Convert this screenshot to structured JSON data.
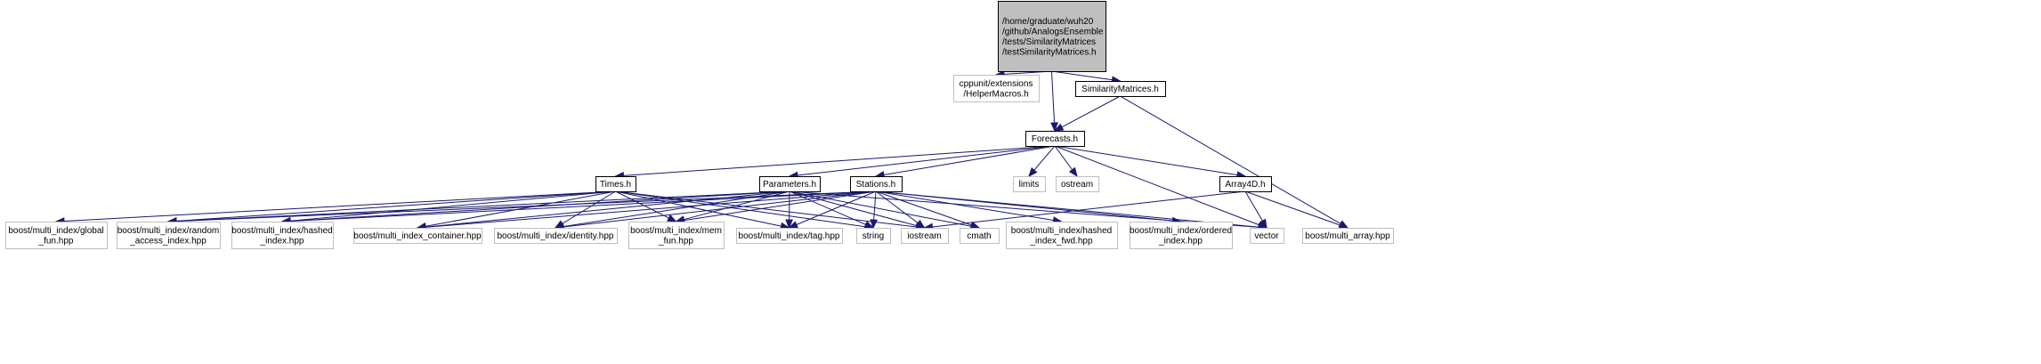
{
  "graph": {
    "nodes": [
      {
        "id": "root",
        "lines": [
          "/home/graduate/wuh20",
          "/github/AnalogsEnsemble",
          "/tests/SimilarityMatrices",
          "/testSimilarityMatrices.h"
        ],
        "kind": "root"
      },
      {
        "id": "helpermacros",
        "lines": [
          "cppunit/extensions",
          "/HelperMacros.h"
        ],
        "kind": "external"
      },
      {
        "id": "similaritymatrices",
        "lines": [
          "SimilarityMatrices.h"
        ],
        "kind": "local"
      },
      {
        "id": "forecasts",
        "lines": [
          "Forecasts.h"
        ],
        "kind": "local"
      },
      {
        "id": "times",
        "lines": [
          "Times.h"
        ],
        "kind": "local"
      },
      {
        "id": "parameters",
        "lines": [
          "Parameters.h"
        ],
        "kind": "local"
      },
      {
        "id": "stations",
        "lines": [
          "Stations.h"
        ],
        "kind": "local"
      },
      {
        "id": "limits",
        "lines": [
          "limits"
        ],
        "kind": "external"
      },
      {
        "id": "ostream",
        "lines": [
          "ostream"
        ],
        "kind": "external"
      },
      {
        "id": "array4d",
        "lines": [
          "Array4D.h"
        ],
        "kind": "local"
      },
      {
        "id": "global_fun",
        "lines": [
          "boost/multi_index/global",
          "_fun.hpp"
        ],
        "kind": "external"
      },
      {
        "id": "random_access",
        "lines": [
          "boost/multi_index/random",
          "_access_index.hpp"
        ],
        "kind": "external"
      },
      {
        "id": "hashed_index",
        "lines": [
          "boost/multi_index/hashed",
          "_index.hpp"
        ],
        "kind": "external"
      },
      {
        "id": "mi_container",
        "lines": [
          "boost/multi_index_container.hpp"
        ],
        "kind": "external"
      },
      {
        "id": "identity",
        "lines": [
          "boost/multi_index/identity.hpp"
        ],
        "kind": "external"
      },
      {
        "id": "mem_fun",
        "lines": [
          "boost/multi_index/mem",
          "_fun.hpp"
        ],
        "kind": "external"
      },
      {
        "id": "tag",
        "lines": [
          "boost/multi_index/tag.hpp"
        ],
        "kind": "external"
      },
      {
        "id": "string",
        "lines": [
          "string"
        ],
        "kind": "external"
      },
      {
        "id": "iostream",
        "lines": [
          "iostream"
        ],
        "kind": "external"
      },
      {
        "id": "cmath",
        "lines": [
          "cmath"
        ],
        "kind": "external"
      },
      {
        "id": "hashed_index_fwd",
        "lines": [
          "boost/multi_index/hashed",
          "_index_fwd.hpp"
        ],
        "kind": "external"
      },
      {
        "id": "ordered_index",
        "lines": [
          "boost/multi_index/ordered",
          "_index.hpp"
        ],
        "kind": "external"
      },
      {
        "id": "vector",
        "lines": [
          "vector"
        ],
        "kind": "external"
      },
      {
        "id": "multi_array",
        "lines": [
          "boost/multi_array.hpp"
        ],
        "kind": "external"
      }
    ],
    "edges": [
      [
        "root",
        "helpermacros"
      ],
      [
        "root",
        "forecasts"
      ],
      [
        "root",
        "similaritymatrices"
      ],
      [
        "similaritymatrices",
        "forecasts"
      ],
      [
        "similaritymatrices",
        "multi_array"
      ],
      [
        "forecasts",
        "times"
      ],
      [
        "forecasts",
        "parameters"
      ],
      [
        "forecasts",
        "stations"
      ],
      [
        "forecasts",
        "limits"
      ],
      [
        "forecasts",
        "ostream"
      ],
      [
        "forecasts",
        "array4d"
      ],
      [
        "forecasts",
        "vector"
      ],
      [
        "times",
        "global_fun"
      ],
      [
        "times",
        "random_access"
      ],
      [
        "times",
        "hashed_index"
      ],
      [
        "times",
        "mi_container"
      ],
      [
        "times",
        "identity"
      ],
      [
        "times",
        "mem_fun"
      ],
      [
        "times",
        "tag"
      ],
      [
        "times",
        "string"
      ],
      [
        "times",
        "iostream"
      ],
      [
        "parameters",
        "random_access"
      ],
      [
        "parameters",
        "hashed_index"
      ],
      [
        "parameters",
        "mi_container"
      ],
      [
        "parameters",
        "identity"
      ],
      [
        "parameters",
        "mem_fun"
      ],
      [
        "parameters",
        "tag"
      ],
      [
        "parameters",
        "string"
      ],
      [
        "parameters",
        "iostream"
      ],
      [
        "parameters",
        "cmath"
      ],
      [
        "parameters",
        "vector"
      ],
      [
        "stations",
        "random_access"
      ],
      [
        "stations",
        "hashed_index"
      ],
      [
        "stations",
        "mi_container"
      ],
      [
        "stations",
        "identity"
      ],
      [
        "stations",
        "mem_fun"
      ],
      [
        "stations",
        "tag"
      ],
      [
        "stations",
        "string"
      ],
      [
        "stations",
        "iostream"
      ],
      [
        "stations",
        "cmath"
      ],
      [
        "stations",
        "hashed_index_fwd"
      ],
      [
        "stations",
        "ordered_index"
      ],
      [
        "stations",
        "vector"
      ],
      [
        "array4d",
        "iostream"
      ],
      [
        "array4d",
        "vector"
      ],
      [
        "array4d",
        "multi_array"
      ]
    ]
  }
}
